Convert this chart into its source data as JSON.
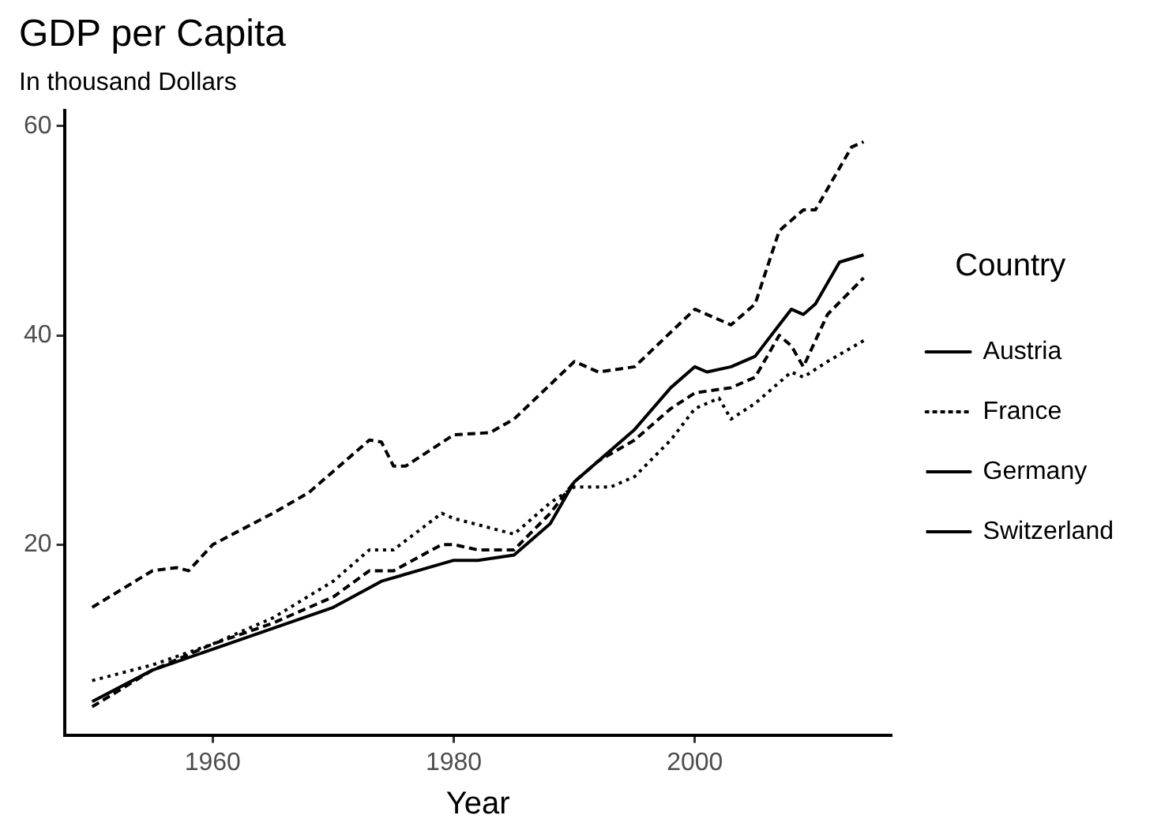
{
  "chart_data": {
    "type": "line",
    "title": "GDP per Capita",
    "subtitle": "In thousand Dollars",
    "xlabel": "Year",
    "legend_title": "Country",
    "legend": "right",
    "grid": false,
    "marker": "none",
    "xlim": [
      1947.7,
      2016.3
    ],
    "xticks": [
      1960,
      1980,
      2000
    ],
    "ylim": [
      1.8,
      61.5
    ],
    "yticks": [
      20,
      40,
      60
    ],
    "series": [
      {
        "name": "Austria",
        "color": "#000000",
        "line_style": "solid",
        "x": [
          1950,
          1955,
          1960,
          1965,
          1970,
          1974,
          1977,
          1980,
          1982,
          1985,
          1988,
          1990,
          1992,
          1995,
          1998,
          2000,
          2001,
          2003,
          2005,
          2007,
          2008,
          2009,
          2010,
          2012,
          2014
        ],
        "values": [
          5,
          8,
          10,
          12,
          14,
          16.5,
          17.5,
          18.5,
          18.5,
          19,
          22,
          26,
          28,
          31,
          35,
          37,
          36.5,
          37,
          38,
          41,
          42.5,
          42,
          43,
          47,
          47.7
        ]
      },
      {
        "name": "France",
        "color": "#000000",
        "line_style": "dotted",
        "x": [
          1950,
          1955,
          1960,
          1965,
          1970,
          1973,
          1975,
          1979,
          1980,
          1985,
          1988,
          1990,
          1993,
          1995,
          1998,
          2000,
          2002,
          2003,
          2005,
          2008,
          2009,
          2011,
          2014
        ],
        "values": [
          7,
          8.5,
          10.5,
          13,
          16.5,
          19.5,
          19.5,
          23,
          22.5,
          21,
          24,
          25.5,
          25.5,
          26.5,
          30,
          33,
          34,
          32,
          33.5,
          36.5,
          36,
          37.5,
          39.5
        ]
      },
      {
        "name": "Germany",
        "color": "#000000",
        "line_style": "dashed",
        "x": [
          1950,
          1955,
          1960,
          1965,
          1970,
          1973,
          1975,
          1979,
          1980,
          1982,
          1985,
          1988,
          1990,
          1992,
          1995,
          1998,
          2000,
          2003,
          2005,
          2007,
          2008,
          2009,
          2011,
          2014
        ],
        "values": [
          4.5,
          8,
          10.5,
          12.5,
          15,
          17.5,
          17.5,
          20,
          20,
          19.5,
          19.5,
          23,
          26,
          28,
          30,
          33,
          34.5,
          35,
          36,
          40,
          39,
          37,
          42,
          45.5
        ]
      },
      {
        "name": "Switzerland",
        "color": "#000000",
        "line_style": "dashed",
        "x": [
          1950,
          1955,
          1957,
          1958,
          1960,
          1965,
          1968,
          1970,
          1973,
          1974,
          1975,
          1976,
          1980,
          1983,
          1985,
          1990,
          1992,
          1995,
          2000,
          2003,
          2005,
          2007,
          2009,
          2010,
          2013,
          2014
        ],
        "values": [
          14,
          17.5,
          17.8,
          17.5,
          20,
          23,
          25,
          27,
          30,
          29.8,
          27.5,
          27.5,
          30.5,
          30.7,
          32,
          37.5,
          36.5,
          37,
          42.5,
          41,
          43,
          50,
          52,
          52,
          58,
          58.5
        ]
      }
    ]
  }
}
